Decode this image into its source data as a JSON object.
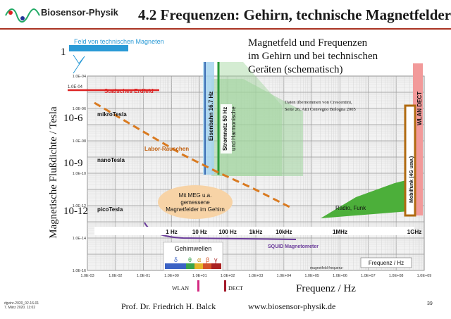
{
  "header": {
    "logo_text": "Biosensor-Physik",
    "title": "4.2 Frequenzen: Gehirn, technische Magnetfelder"
  },
  "chart": {
    "title_lines": [
      "Magnetfeld und Frequenzen",
      "im Gehirn und bei technischen",
      "Geräten (schematisch)"
    ],
    "source_note_lines": [
      "Daten übernommen von Crescentini,",
      "Seite 26, Atti Convegno Bologna 2005"
    ],
    "ylabel": "Magnetische Flußdichte / Tesla",
    "xlabel": "Frequenz / Hz",
    "y_big_labels": [
      "1",
      "10-6",
      "10-9",
      "10-12"
    ],
    "y_small_ticks": [
      "1.0E-04",
      "1.0E-06",
      "1.0E-08",
      "1.0E-10",
      "1.0E-12",
      "1.0E-14",
      "1.0E-16"
    ],
    "x_ticks": [
      "1.0E-03",
      "1.0E-02",
      "1.0E-01",
      "1.0E+00",
      "1.0E+01",
      "1.0E+02",
      "1.0E+03",
      "1.0E+04",
      "1.0E+05",
      "1.0E+06",
      "1.0E+07",
      "1.0E+08",
      "1.0E+09"
    ],
    "freq_labels": [
      "1 Hz",
      "10 Hz",
      "100 Hz",
      "1kHz",
      "10kHz",
      "1MHz",
      "1GHz"
    ],
    "labels": {
      "feld_von": "Feld von technischen Magneten",
      "statisch": "Statisches Erdfeld",
      "mikro": "mikroTesla",
      "nano": "nanoTesla",
      "pico": "picoTesla",
      "labor": "Labor-Rauschen",
      "eisenbahn": "Eisenbahn 16.7 Hz",
      "stromnetz": "Stromnetz   50 Hz",
      "harmonische": "und Harmonische",
      "wlan_dect": "WLAN  DECT",
      "mobilfunk": "Mobilfunk (4G usw.)",
      "radio": "Radio, Funk",
      "meg_lines": [
        "Mit MEG u.a.",
        "gemessene",
        "Magnetfelder im Gehirn"
      ],
      "squid": "SQUID Magnetometer",
      "gehirnwellen": "Gehirnwellen",
      "greek": [
        "δ",
        "θ",
        "α",
        "β",
        "γ"
      ],
      "freq_inner": "Frequenz / Hz",
      "magnetfeld_freq": "magnetfeld-frequenz-",
      "wlan": "WLAN",
      "dect": "DECT",
      "y_1e_minus4": "1.0E-04"
    }
  },
  "footer": {
    "date_lines": [
      "dgvinr-2020_02-16-01",
      "7. März 2020. 11:02"
    ],
    "author": "Prof. Dr. Friedrich H. Balck",
    "website": "www.biosensor-physik.de",
    "page": "39"
  }
}
